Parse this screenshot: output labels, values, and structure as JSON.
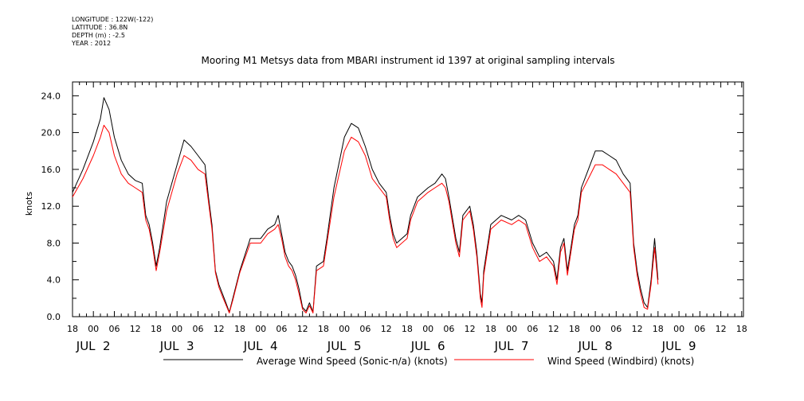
{
  "meta_lines": {
    "longitude": "LONGITUDE : 122W(-122)",
    "latitude": "LATITUDE : 36.8N",
    "depth": "DEPTH (m) : -2.5",
    "year": "YEAR : 2012"
  },
  "chart_data": {
    "type": "line",
    "title": "Mooring M1 Metsys data from MBARI instrument id 1397 at original sampling intervals",
    "ylabel": "knots",
    "xlabel": "",
    "ylim": [
      0,
      25.5
    ],
    "xlim": [
      "2012-07-01 18:00",
      "2012-07-09 18:30"
    ],
    "y_ticks": [
      "0.0",
      "4.0",
      "8.0",
      "12.0",
      "16.0",
      "20.0",
      "24.0"
    ],
    "y_tick_values": [
      0,
      4,
      8,
      12,
      16,
      20,
      24
    ],
    "x_hour_labels": [
      "18",
      "00",
      "06",
      "12",
      "18",
      "00",
      "06",
      "12",
      "18",
      "00",
      "06",
      "12",
      "18",
      "00",
      "06",
      "12",
      "18",
      "00",
      "06",
      "12",
      "18",
      "00",
      "06",
      "12",
      "18",
      "00",
      "06",
      "12",
      "18",
      "00",
      "06",
      "12",
      "18"
    ],
    "x_day_labels": [
      {
        "date": "2012-07-02",
        "label": "JUL  2"
      },
      {
        "date": "2012-07-03",
        "label": "JUL  3"
      },
      {
        "date": "2012-07-04",
        "label": "JUL  4"
      },
      {
        "date": "2012-07-05",
        "label": "JUL  5"
      },
      {
        "date": "2012-07-06",
        "label": "JUL  6"
      },
      {
        "date": "2012-07-07",
        "label": "JUL  7"
      },
      {
        "date": "2012-07-08",
        "label": "JUL  8"
      },
      {
        "date": "2012-07-09",
        "label": "JUL  9"
      }
    ],
    "grid": false,
    "legend_position": "bottom",
    "series": [
      {
        "name": "Average Wind Speed (Sonic-n/a) (knots)",
        "color": "#000000",
        "points": [
          [
            "2012-07-01 18:00",
            13.5
          ],
          [
            "2012-07-01 21:00",
            16.0
          ],
          [
            "2012-07-02 00:00",
            19.0
          ],
          [
            "2012-07-02 02:00",
            21.5
          ],
          [
            "2012-07-02 03:00",
            23.8
          ],
          [
            "2012-07-02 04:30",
            22.5
          ],
          [
            "2012-07-02 06:00",
            19.5
          ],
          [
            "2012-07-02 08:00",
            17.0
          ],
          [
            "2012-07-02 10:00",
            15.5
          ],
          [
            "2012-07-02 12:00",
            14.8
          ],
          [
            "2012-07-02 14:00",
            14.5
          ],
          [
            "2012-07-02 15:00",
            11.0
          ],
          [
            "2012-07-02 16:00",
            10.0
          ],
          [
            "2012-07-02 17:00",
            8.0
          ],
          [
            "2012-07-02 18:00",
            5.5
          ],
          [
            "2012-07-02 19:00",
            7.5
          ],
          [
            "2012-07-02 21:00",
            12.5
          ],
          [
            "2012-07-03 00:00",
            16.5
          ],
          [
            "2012-07-03 02:00",
            19.2
          ],
          [
            "2012-07-03 04:00",
            18.5
          ],
          [
            "2012-07-03 06:00",
            17.5
          ],
          [
            "2012-07-03 08:00",
            16.5
          ],
          [
            "2012-07-03 09:00",
            13.0
          ],
          [
            "2012-07-03 10:00",
            10.0
          ],
          [
            "2012-07-03 11:00",
            5.0
          ],
          [
            "2012-07-03 12:00",
            3.5
          ],
          [
            "2012-07-03 13:00",
            2.5
          ],
          [
            "2012-07-03 14:00",
            1.5
          ],
          [
            "2012-07-03 15:00",
            0.5
          ],
          [
            "2012-07-03 16:00",
            2.0
          ],
          [
            "2012-07-03 18:00",
            5.0
          ],
          [
            "2012-07-03 21:00",
            8.5
          ],
          [
            "2012-07-04 00:00",
            8.5
          ],
          [
            "2012-07-04 02:00",
            9.5
          ],
          [
            "2012-07-04 04:00",
            10.0
          ],
          [
            "2012-07-04 05:00",
            11.0
          ],
          [
            "2012-07-04 06:00",
            9.0
          ],
          [
            "2012-07-04 07:00",
            7.0
          ],
          [
            "2012-07-04 08:00",
            6.0
          ],
          [
            "2012-07-04 09:00",
            5.5
          ],
          [
            "2012-07-04 10:00",
            4.5
          ],
          [
            "2012-07-04 11:00",
            3.0
          ],
          [
            "2012-07-04 12:00",
            1.0
          ],
          [
            "2012-07-04 13:00",
            0.6
          ],
          [
            "2012-07-04 14:00",
            1.5
          ],
          [
            "2012-07-04 15:00",
            0.5
          ],
          [
            "2012-07-04 16:00",
            5.5
          ],
          [
            "2012-07-04 18:00",
            6.0
          ],
          [
            "2012-07-04 19:00",
            8.5
          ],
          [
            "2012-07-04 21:00",
            14.0
          ],
          [
            "2012-07-05 00:00",
            19.5
          ],
          [
            "2012-07-05 02:00",
            21.0
          ],
          [
            "2012-07-05 04:00",
            20.5
          ],
          [
            "2012-07-05 06:00",
            18.5
          ],
          [
            "2012-07-05 08:00",
            16.0
          ],
          [
            "2012-07-05 10:00",
            14.5
          ],
          [
            "2012-07-05 12:00",
            13.5
          ],
          [
            "2012-07-05 13:00",
            11.0
          ],
          [
            "2012-07-05 14:00",
            9.0
          ],
          [
            "2012-07-05 15:00",
            8.0
          ],
          [
            "2012-07-05 18:00",
            9.0
          ],
          [
            "2012-07-05 19:00",
            11.0
          ],
          [
            "2012-07-05 21:00",
            13.0
          ],
          [
            "2012-07-06 00:00",
            14.0
          ],
          [
            "2012-07-06 02:00",
            14.5
          ],
          [
            "2012-07-06 04:00",
            15.5
          ],
          [
            "2012-07-06 05:00",
            15.0
          ],
          [
            "2012-07-06 06:00",
            13.0
          ],
          [
            "2012-07-06 08:00",
            8.5
          ],
          [
            "2012-07-06 09:00",
            7.0
          ],
          [
            "2012-07-06 10:00",
            11.0
          ],
          [
            "2012-07-06 12:00",
            12.0
          ],
          [
            "2012-07-06 13:00",
            10.0
          ],
          [
            "2012-07-06 14:00",
            7.0
          ],
          [
            "2012-07-06 15:00",
            2.5
          ],
          [
            "2012-07-06 15:30",
            1.5
          ],
          [
            "2012-07-06 16:00",
            5.0
          ],
          [
            "2012-07-06 18:00",
            10.0
          ],
          [
            "2012-07-06 21:00",
            11.0
          ],
          [
            "2012-07-07 00:00",
            10.5
          ],
          [
            "2012-07-07 02:00",
            11.0
          ],
          [
            "2012-07-07 04:00",
            10.5
          ],
          [
            "2012-07-07 06:00",
            8.0
          ],
          [
            "2012-07-07 08:00",
            6.5
          ],
          [
            "2012-07-07 10:00",
            7.0
          ],
          [
            "2012-07-07 12:00",
            6.0
          ],
          [
            "2012-07-07 13:00",
            4.0
          ],
          [
            "2012-07-07 14:00",
            7.5
          ],
          [
            "2012-07-07 15:00",
            8.5
          ],
          [
            "2012-07-07 16:00",
            5.0
          ],
          [
            "2012-07-07 18:00",
            10.0
          ],
          [
            "2012-07-07 19:00",
            11.0
          ],
          [
            "2012-07-07 20:00",
            14.0
          ],
          [
            "2012-07-07 22:00",
            16.0
          ],
          [
            "2012-07-08 00:00",
            18.0
          ],
          [
            "2012-07-08 02:00",
            18.0
          ],
          [
            "2012-07-08 04:00",
            17.5
          ],
          [
            "2012-07-08 06:00",
            17.0
          ],
          [
            "2012-07-08 08:00",
            15.5
          ],
          [
            "2012-07-08 10:00",
            14.5
          ],
          [
            "2012-07-08 11:00",
            8.0
          ],
          [
            "2012-07-08 12:00",
            5.0
          ],
          [
            "2012-07-08 13:00",
            3.0
          ],
          [
            "2012-07-08 14:00",
            1.5
          ],
          [
            "2012-07-08 15:00",
            1.0
          ],
          [
            "2012-07-08 16:00",
            4.0
          ],
          [
            "2012-07-08 17:00",
            8.5
          ],
          [
            "2012-07-08 18:00",
            4.0
          ]
        ]
      },
      {
        "name": "Wind Speed (Windbird) (knots)",
        "color": "#ff0000",
        "points": [
          [
            "2012-07-01 18:00",
            13.0
          ],
          [
            "2012-07-01 21:00",
            15.0
          ],
          [
            "2012-07-02 00:00",
            17.5
          ],
          [
            "2012-07-02 02:00",
            19.5
          ],
          [
            "2012-07-02 03:00",
            20.8
          ],
          [
            "2012-07-02 04:30",
            20.0
          ],
          [
            "2012-07-02 06:00",
            17.5
          ],
          [
            "2012-07-02 08:00",
            15.5
          ],
          [
            "2012-07-02 10:00",
            14.5
          ],
          [
            "2012-07-02 12:00",
            14.0
          ],
          [
            "2012-07-02 14:00",
            13.5
          ],
          [
            "2012-07-02 15:00",
            10.5
          ],
          [
            "2012-07-02 16:00",
            9.5
          ],
          [
            "2012-07-02 17:00",
            7.5
          ],
          [
            "2012-07-02 18:00",
            5.0
          ],
          [
            "2012-07-02 19:00",
            7.0
          ],
          [
            "2012-07-02 21:00",
            11.5
          ],
          [
            "2012-07-03 00:00",
            15.5
          ],
          [
            "2012-07-03 02:00",
            17.5
          ],
          [
            "2012-07-03 04:00",
            17.0
          ],
          [
            "2012-07-03 06:00",
            16.0
          ],
          [
            "2012-07-03 08:00",
            15.5
          ],
          [
            "2012-07-03 09:00",
            12.5
          ],
          [
            "2012-07-03 10:00",
            9.5
          ],
          [
            "2012-07-03 11:00",
            4.8
          ],
          [
            "2012-07-03 12:00",
            3.2
          ],
          [
            "2012-07-03 13:00",
            2.2
          ],
          [
            "2012-07-03 14:00",
            1.3
          ],
          [
            "2012-07-03 15:00",
            0.4
          ],
          [
            "2012-07-03 16:00",
            1.8
          ],
          [
            "2012-07-03 18:00",
            4.8
          ],
          [
            "2012-07-03 21:00",
            8.0
          ],
          [
            "2012-07-04 00:00",
            8.0
          ],
          [
            "2012-07-04 02:00",
            9.0
          ],
          [
            "2012-07-04 04:00",
            9.5
          ],
          [
            "2012-07-04 05:00",
            10.0
          ],
          [
            "2012-07-04 06:00",
            8.5
          ],
          [
            "2012-07-04 07:00",
            6.5
          ],
          [
            "2012-07-04 08:00",
            5.5
          ],
          [
            "2012-07-04 09:00",
            5.0
          ],
          [
            "2012-07-04 10:00",
            4.0
          ],
          [
            "2012-07-04 11:00",
            2.5
          ],
          [
            "2012-07-04 12:00",
            0.8
          ],
          [
            "2012-07-04 13:00",
            0.4
          ],
          [
            "2012-07-04 14:00",
            1.2
          ],
          [
            "2012-07-04 15:00",
            0.4
          ],
          [
            "2012-07-04 16:00",
            5.0
          ],
          [
            "2012-07-04 18:00",
            5.5
          ],
          [
            "2012-07-04 19:00",
            8.0
          ],
          [
            "2012-07-04 21:00",
            13.0
          ],
          [
            "2012-07-05 00:00",
            18.0
          ],
          [
            "2012-07-05 02:00",
            19.5
          ],
          [
            "2012-07-05 04:00",
            19.0
          ],
          [
            "2012-07-05 06:00",
            17.5
          ],
          [
            "2012-07-05 08:00",
            15.0
          ],
          [
            "2012-07-05 10:00",
            14.0
          ],
          [
            "2012-07-05 12:00",
            13.0
          ],
          [
            "2012-07-05 13:00",
            10.5
          ],
          [
            "2012-07-05 14:00",
            8.5
          ],
          [
            "2012-07-05 15:00",
            7.5
          ],
          [
            "2012-07-05 18:00",
            8.5
          ],
          [
            "2012-07-05 19:00",
            10.5
          ],
          [
            "2012-07-05 21:00",
            12.5
          ],
          [
            "2012-07-06 00:00",
            13.5
          ],
          [
            "2012-07-06 02:00",
            14.0
          ],
          [
            "2012-07-06 04:00",
            14.5
          ],
          [
            "2012-07-06 05:00",
            14.0
          ],
          [
            "2012-07-06 06:00",
            12.5
          ],
          [
            "2012-07-06 08:00",
            8.0
          ],
          [
            "2012-07-06 09:00",
            6.5
          ],
          [
            "2012-07-06 10:00",
            10.5
          ],
          [
            "2012-07-06 12:00",
            11.5
          ],
          [
            "2012-07-06 13:00",
            9.5
          ],
          [
            "2012-07-06 14:00",
            6.5
          ],
          [
            "2012-07-06 15:00",
            2.0
          ],
          [
            "2012-07-06 15:30",
            1.0
          ],
          [
            "2012-07-06 16:00",
            4.5
          ],
          [
            "2012-07-06 18:00",
            9.5
          ],
          [
            "2012-07-06 21:00",
            10.5
          ],
          [
            "2012-07-07 00:00",
            10.0
          ],
          [
            "2012-07-07 02:00",
            10.5
          ],
          [
            "2012-07-07 04:00",
            10.0
          ],
          [
            "2012-07-07 06:00",
            7.5
          ],
          [
            "2012-07-07 08:00",
            6.0
          ],
          [
            "2012-07-07 10:00",
            6.5
          ],
          [
            "2012-07-07 12:00",
            5.5
          ],
          [
            "2012-07-07 13:00",
            3.5
          ],
          [
            "2012-07-07 14:00",
            7.0
          ],
          [
            "2012-07-07 15:00",
            8.0
          ],
          [
            "2012-07-07 16:00",
            4.5
          ],
          [
            "2012-07-07 18:00",
            9.5
          ],
          [
            "2012-07-07 19:00",
            10.5
          ],
          [
            "2012-07-07 20:00",
            13.5
          ],
          [
            "2012-07-07 22:00",
            15.0
          ],
          [
            "2012-07-08 00:00",
            16.5
          ],
          [
            "2012-07-08 02:00",
            16.5
          ],
          [
            "2012-07-08 04:00",
            16.0
          ],
          [
            "2012-07-08 06:00",
            15.5
          ],
          [
            "2012-07-08 08:00",
            14.5
          ],
          [
            "2012-07-08 10:00",
            13.5
          ],
          [
            "2012-07-08 11:00",
            7.5
          ],
          [
            "2012-07-08 12:00",
            4.5
          ],
          [
            "2012-07-08 13:00",
            2.5
          ],
          [
            "2012-07-08 14:00",
            1.0
          ],
          [
            "2012-07-08 15:00",
            0.8
          ],
          [
            "2012-07-08 16:00",
            3.5
          ],
          [
            "2012-07-08 17:00",
            7.5
          ],
          [
            "2012-07-08 18:00",
            3.5
          ]
        ]
      }
    ]
  }
}
